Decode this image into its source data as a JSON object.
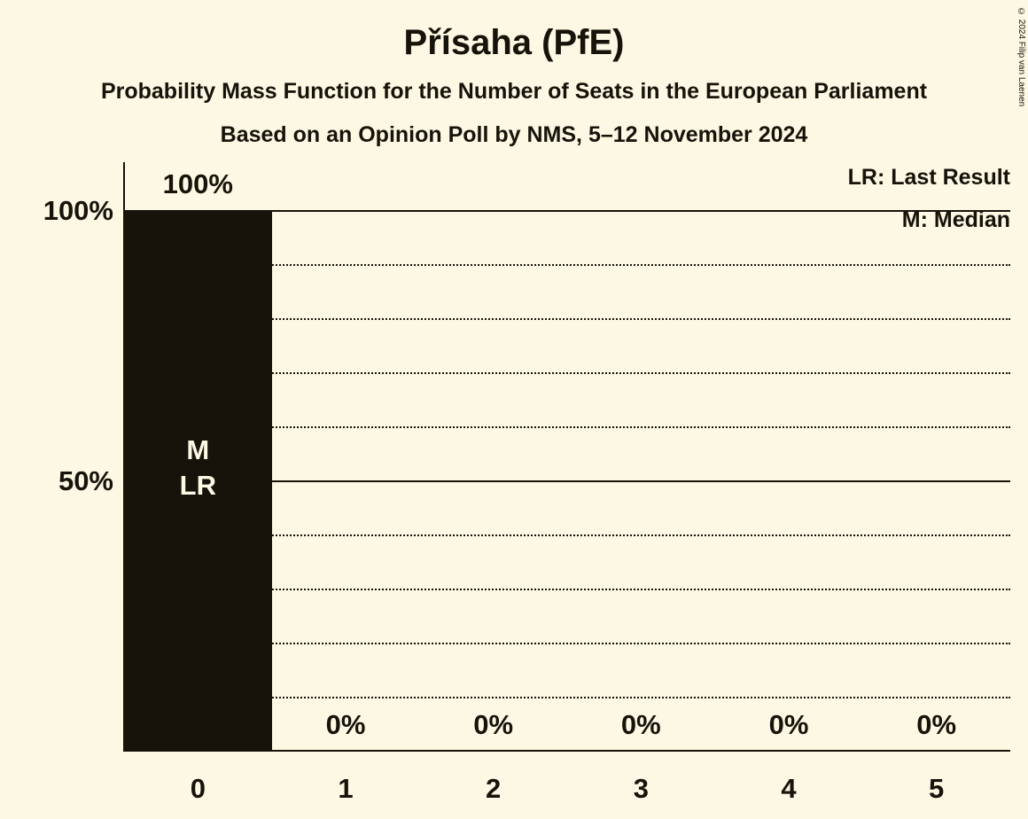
{
  "title": "Přísaha (PfE)",
  "subtitle1": "Probability Mass Function for the Number of Seats in the European Parliament",
  "subtitle2": "Based on an Opinion Poll by NMS, 5–12 November 2024",
  "legend": {
    "lr": "LR: Last Result",
    "m": "M: Median"
  },
  "copyright": "© 2024 Filip van Laenen",
  "colors": {
    "background": "#fcf8e3",
    "bar": "#16130a",
    "text": "#16130a",
    "bar_label": "#fcf8e3"
  },
  "chart_data": {
    "type": "bar",
    "categories": [
      "0",
      "1",
      "2",
      "3",
      "4",
      "5"
    ],
    "values": [
      100,
      0,
      0,
      0,
      0,
      0
    ],
    "value_labels": [
      "100%",
      "0%",
      "0%",
      "0%",
      "0%",
      "0%"
    ],
    "bar_annotations": [
      [
        "M",
        "LR"
      ],
      [],
      [],
      [],
      [],
      []
    ],
    "ytick_labels": [
      "100%",
      "50%"
    ],
    "ylim": [
      0,
      100
    ],
    "solid_gridlines": [
      100,
      50
    ],
    "dotted_gridlines": [
      90,
      80,
      70,
      60,
      40,
      30,
      20,
      10
    ],
    "xlabel": "",
    "ylabel": "",
    "legend_position": "top-right",
    "grid": "horizontal-dotted"
  }
}
